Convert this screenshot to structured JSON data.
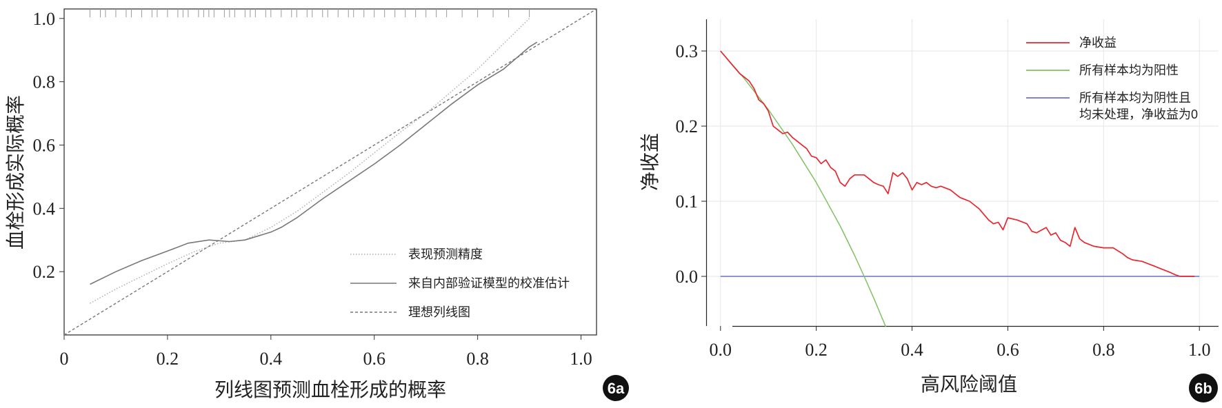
{
  "chart_data": [
    {
      "id": "6a",
      "type": "line",
      "panel_label": "6a",
      "xlabel": "列线图预测血栓形成的概率",
      "ylabel": "血栓形成实际概率",
      "xlim": [
        0,
        1.03
      ],
      "ylim": [
        0,
        1.03
      ],
      "xticks": [
        0,
        0.2,
        0.4,
        0.6,
        0.8,
        1.0
      ],
      "xtick_labels": [
        "0",
        "0.2",
        "0.4",
        "0.6",
        "0.8",
        "1.0"
      ],
      "yticks": [
        0.2,
        0.4,
        0.6,
        0.8,
        1.0
      ],
      "ytick_labels": [
        "0.2",
        "0.4",
        "0.6",
        "0.8",
        "1.0"
      ],
      "grid": false,
      "legend_position": "bottom-right",
      "colors": {
        "apparent": "#aaaaaa",
        "bias_corrected": "#777777",
        "ideal": "#777777"
      },
      "series": [
        {
          "key": "apparent",
          "name": "表现预测精度",
          "style": "dotted",
          "x": [
            0.05,
            0.1,
            0.15,
            0.2,
            0.25,
            0.3,
            0.35,
            0.4,
            0.45,
            0.5,
            0.55,
            0.6,
            0.65,
            0.7,
            0.75,
            0.8,
            0.85,
            0.9
          ],
          "y": [
            0.1,
            0.145,
            0.185,
            0.225,
            0.262,
            0.29,
            0.3,
            0.34,
            0.39,
            0.45,
            0.51,
            0.575,
            0.64,
            0.7,
            0.77,
            0.84,
            0.92,
            1.0
          ]
        },
        {
          "key": "bias_corrected",
          "name": "来自内部验证模型的校准估计",
          "style": "solid",
          "x": [
            0.05,
            0.1,
            0.15,
            0.2,
            0.24,
            0.28,
            0.32,
            0.35,
            0.38,
            0.4,
            0.42,
            0.45,
            0.5,
            0.55,
            0.6,
            0.65,
            0.7,
            0.75,
            0.8,
            0.85,
            0.9,
            0.915
          ],
          "y": [
            0.16,
            0.2,
            0.235,
            0.265,
            0.29,
            0.3,
            0.295,
            0.3,
            0.315,
            0.325,
            0.34,
            0.37,
            0.43,
            0.485,
            0.54,
            0.6,
            0.665,
            0.73,
            0.79,
            0.84,
            0.91,
            0.925
          ]
        },
        {
          "key": "ideal",
          "name": "理想列线图",
          "style": "dashed",
          "x": [
            0,
            1.03
          ],
          "y": [
            0,
            1.03
          ]
        }
      ],
      "rug_x": [
        0.05,
        0.07,
        0.08,
        0.1,
        0.12,
        0.13,
        0.15,
        0.17,
        0.18,
        0.2,
        0.22,
        0.23,
        0.24,
        0.26,
        0.27,
        0.28,
        0.29,
        0.31,
        0.32,
        0.33,
        0.35,
        0.36,
        0.37,
        0.39,
        0.4,
        0.42,
        0.44,
        0.45,
        0.47,
        0.48,
        0.5,
        0.51,
        0.53,
        0.55,
        0.56,
        0.58,
        0.6,
        0.62,
        0.64,
        0.66,
        0.68,
        0.7,
        0.72,
        0.74,
        0.77,
        0.8,
        0.83,
        0.86,
        0.9
      ]
    },
    {
      "id": "6b",
      "type": "line",
      "panel_label": "6b",
      "xlabel": "高风险阈值",
      "ylabel": "净收益",
      "xlim": [
        -0.04,
        1.04
      ],
      "ylim": [
        -0.067,
        0.34
      ],
      "xticks": [
        0.0,
        0.2,
        0.4,
        0.6,
        0.8,
        1.0
      ],
      "xtick_labels": [
        "0.0",
        "0.2",
        "0.4",
        "0.6",
        "0.8",
        "1.0"
      ],
      "yticks": [
        0.0,
        0.1,
        0.2,
        0.3
      ],
      "ytick_labels": [
        "0.0",
        "0.1",
        "0.2",
        "0.3"
      ],
      "grid": true,
      "legend_position": "top-right",
      "colors": {
        "model": "#e8262d",
        "all": "#7dc263",
        "none": "#6d6fd0",
        "grid": "#e6e6e6"
      },
      "series": [
        {
          "key": "model",
          "name": "净收益",
          "x": [
            0.0,
            0.02,
            0.04,
            0.06,
            0.07,
            0.08,
            0.09,
            0.1,
            0.11,
            0.12,
            0.13,
            0.14,
            0.15,
            0.16,
            0.17,
            0.18,
            0.19,
            0.2,
            0.21,
            0.22,
            0.23,
            0.24,
            0.25,
            0.26,
            0.27,
            0.28,
            0.3,
            0.31,
            0.32,
            0.33,
            0.34,
            0.35,
            0.36,
            0.37,
            0.38,
            0.39,
            0.4,
            0.41,
            0.42,
            0.43,
            0.44,
            0.45,
            0.46,
            0.48,
            0.5,
            0.52,
            0.54,
            0.56,
            0.57,
            0.58,
            0.59,
            0.6,
            0.62,
            0.64,
            0.65,
            0.66,
            0.68,
            0.69,
            0.7,
            0.71,
            0.72,
            0.73,
            0.74,
            0.75,
            0.76,
            0.78,
            0.8,
            0.82,
            0.84,
            0.85,
            0.86,
            0.88,
            0.9,
            0.92,
            0.94,
            0.95,
            0.96,
            0.99
          ],
          "y": [
            0.3,
            0.285,
            0.27,
            0.26,
            0.25,
            0.235,
            0.23,
            0.22,
            0.2,
            0.195,
            0.19,
            0.192,
            0.185,
            0.18,
            0.175,
            0.17,
            0.16,
            0.158,
            0.15,
            0.155,
            0.145,
            0.14,
            0.125,
            0.12,
            0.13,
            0.135,
            0.135,
            0.13,
            0.125,
            0.122,
            0.12,
            0.11,
            0.138,
            0.133,
            0.138,
            0.13,
            0.115,
            0.125,
            0.122,
            0.125,
            0.12,
            0.118,
            0.12,
            0.115,
            0.105,
            0.1,
            0.09,
            0.075,
            0.07,
            0.072,
            0.062,
            0.078,
            0.075,
            0.07,
            0.06,
            0.058,
            0.065,
            0.055,
            0.058,
            0.048,
            0.045,
            0.04,
            0.065,
            0.05,
            0.045,
            0.04,
            0.038,
            0.038,
            0.03,
            0.025,
            0.022,
            0.02,
            0.015,
            0.01,
            0.005,
            0.002,
            0.0,
            0.0
          ]
        },
        {
          "key": "all",
          "name": "所有样本均为阳性",
          "x": [
            0.0,
            0.05,
            0.1,
            0.15,
            0.2,
            0.25,
            0.28,
            0.3,
            0.32,
            0.345
          ],
          "y": [
            0.3,
            0.263,
            0.222,
            0.176,
            0.125,
            0.067,
            0.028,
            0.0,
            -0.029,
            -0.067
          ]
        },
        {
          "key": "none",
          "name": "所有样本均为阴性且均未处理，净收益为0",
          "name_lines": [
            "所有样本均为阴性且",
            "均未处理，净收益为0"
          ],
          "x": [
            0.0,
            1.0
          ],
          "y": [
            0.0,
            0.0
          ]
        }
      ]
    }
  ]
}
